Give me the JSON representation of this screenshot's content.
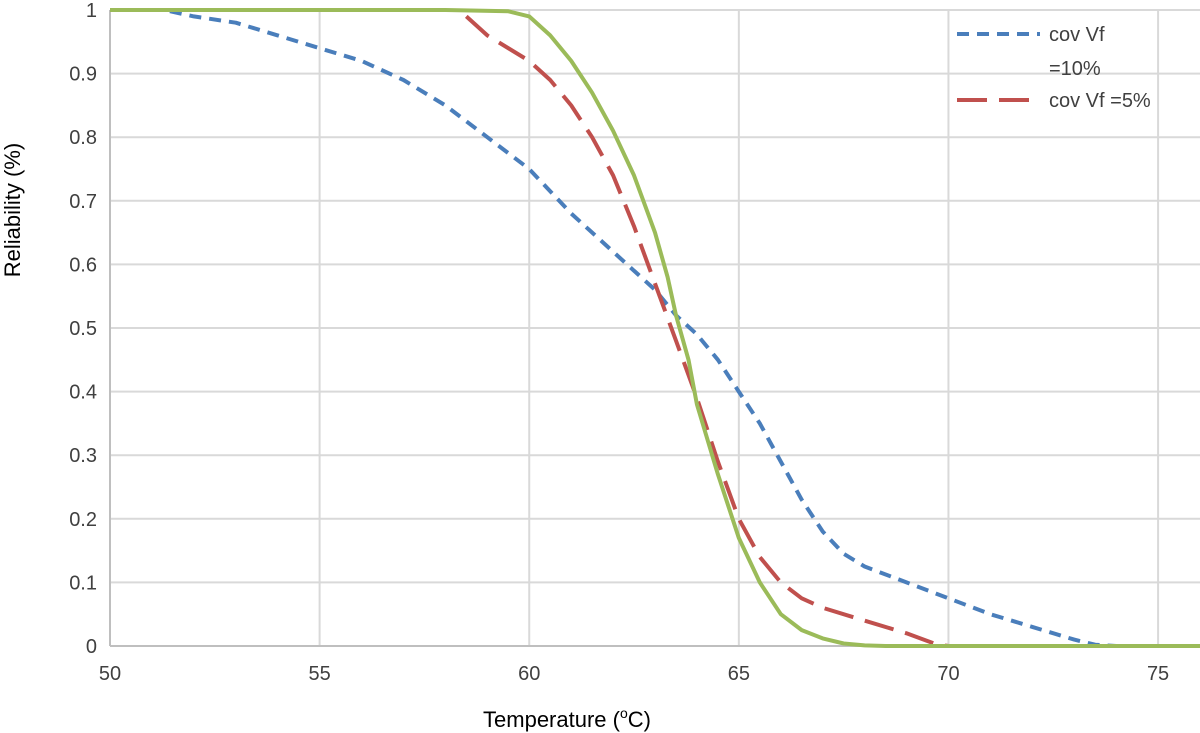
{
  "chart_data": {
    "type": "line",
    "xlabel": "Temperature (",
    "xlabel_sup": "o",
    "xlabel_end": "C)",
    "ylabel": "Reliability (%)",
    "xlim": [
      50,
      76
    ],
    "ylim": [
      0,
      1
    ],
    "x_ticks": [
      "50",
      "55",
      "60",
      "65",
      "70",
      "75"
    ],
    "y_ticks": [
      "0",
      "0.1",
      "0.2",
      "0.3",
      "0.4",
      "0.5",
      "0.6",
      "0.7",
      "0.8",
      "0.9",
      "1"
    ],
    "grid": true,
    "legend_position": "top-right",
    "series": [
      {
        "name_lines": [
          "cov Vf",
          "=10%"
        ],
        "color": "#4a7ebb",
        "style": "short-dash",
        "points": [
          [
            50,
            1
          ],
          [
            51.3,
            1.0
          ],
          [
            52,
            0.99
          ],
          [
            53,
            0.98
          ],
          [
            54,
            0.96
          ],
          [
            55,
            0.94
          ],
          [
            56,
            0.92
          ],
          [
            57,
            0.89
          ],
          [
            58,
            0.85
          ],
          [
            59,
            0.8
          ],
          [
            60,
            0.75
          ],
          [
            61,
            0.68
          ],
          [
            62,
            0.62
          ],
          [
            63,
            0.56
          ],
          [
            63.5,
            0.52
          ],
          [
            64,
            0.49
          ],
          [
            64.5,
            0.45
          ],
          [
            65,
            0.4
          ],
          [
            65.5,
            0.35
          ],
          [
            66,
            0.29
          ],
          [
            66.5,
            0.23
          ],
          [
            67,
            0.18
          ],
          [
            67.5,
            0.145
          ],
          [
            68,
            0.125
          ],
          [
            69,
            0.1
          ],
          [
            70,
            0.075
          ],
          [
            71,
            0.05
          ],
          [
            72,
            0.03
          ],
          [
            73,
            0.01
          ],
          [
            73.5,
            0.002
          ],
          [
            74,
            0
          ]
        ]
      },
      {
        "name": "cov Vf =5%",
        "color": "#c0504d",
        "style": "long-dash",
        "points": [
          [
            58.5,
            0.99
          ],
          [
            59,
            0.96
          ],
          [
            60,
            0.92
          ],
          [
            60.5,
            0.89
          ],
          [
            61,
            0.85
          ],
          [
            61.5,
            0.8
          ],
          [
            62,
            0.74
          ],
          [
            62.5,
            0.66
          ],
          [
            63,
            0.57
          ],
          [
            63.5,
            0.48
          ],
          [
            64,
            0.39
          ],
          [
            64.5,
            0.29
          ],
          [
            65,
            0.2
          ],
          [
            65.5,
            0.14
          ],
          [
            66,
            0.1
          ],
          [
            66.5,
            0.075
          ],
          [
            67,
            0.06
          ],
          [
            68,
            0.04
          ],
          [
            69,
            0.02
          ],
          [
            69.7,
            0.003
          ],
          [
            70,
            0
          ]
        ]
      },
      {
        "name": "",
        "color": "#9bbb59",
        "style": "solid",
        "points": [
          [
            50,
            1
          ],
          [
            58,
            1
          ],
          [
            59.5,
            0.998
          ],
          [
            60,
            0.99
          ],
          [
            60.5,
            0.96
          ],
          [
            61,
            0.92
          ],
          [
            61.5,
            0.87
          ],
          [
            62,
            0.81
          ],
          [
            62.5,
            0.74
          ],
          [
            63,
            0.65
          ],
          [
            63.3,
            0.58
          ],
          [
            63.5,
            0.52
          ],
          [
            63.8,
            0.45
          ],
          [
            64,
            0.38
          ],
          [
            64.5,
            0.27
          ],
          [
            65,
            0.17
          ],
          [
            65.5,
            0.1
          ],
          [
            66,
            0.05
          ],
          [
            66.5,
            0.025
          ],
          [
            67,
            0.012
          ],
          [
            67.5,
            0.004
          ],
          [
            68,
            0.001
          ],
          [
            68.5,
            0
          ],
          [
            76,
            0
          ]
        ]
      }
    ]
  }
}
